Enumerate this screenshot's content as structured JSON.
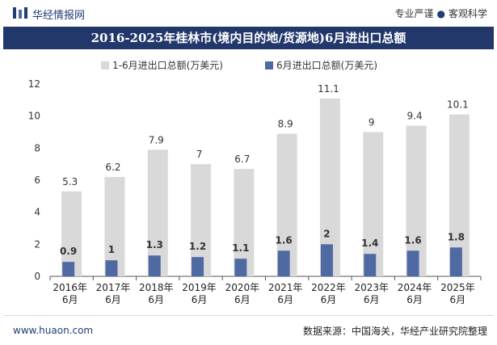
{
  "header": {
    "brand": "华经情报网",
    "tagline_left": "专业严谨",
    "tagline_right": "客观科学"
  },
  "footer": {
    "website": "www.huaon.com",
    "source": "数据来源：中国海关，华经产业研究院整理"
  },
  "colors": {
    "series_total": "#d9d9d9",
    "series_june": "#4f6aa3",
    "title_band": "#22386b"
  },
  "chart_data": {
    "type": "bar",
    "title": "2016-2025年桂林市(境内目的地/货源地)6月进出口总额",
    "categories": [
      "2016年\n6月",
      "2017年\n6月",
      "2018年\n6月",
      "2019年\n6月",
      "2020年\n6月",
      "2021年\n6月",
      "2022年\n6月",
      "2023年\n6月",
      "2024年\n6月",
      "2025年\n6月"
    ],
    "series": [
      {
        "name": "1-6月进出口总额(万美元)",
        "values": [
          5.3,
          6.2,
          7.9,
          7,
          6.7,
          8.9,
          11.1,
          9,
          9.4,
          10.1
        ]
      },
      {
        "name": "6月进出口总额(万美元)",
        "values": [
          0.9,
          1,
          1.3,
          1.2,
          1.1,
          1.6,
          2,
          1.4,
          1.6,
          1.8
        ]
      }
    ],
    "ylim": [
      0,
      12
    ],
    "yticks": [
      0,
      2,
      4,
      6,
      8,
      10,
      12
    ],
    "grid": false,
    "legend_position": "top"
  }
}
